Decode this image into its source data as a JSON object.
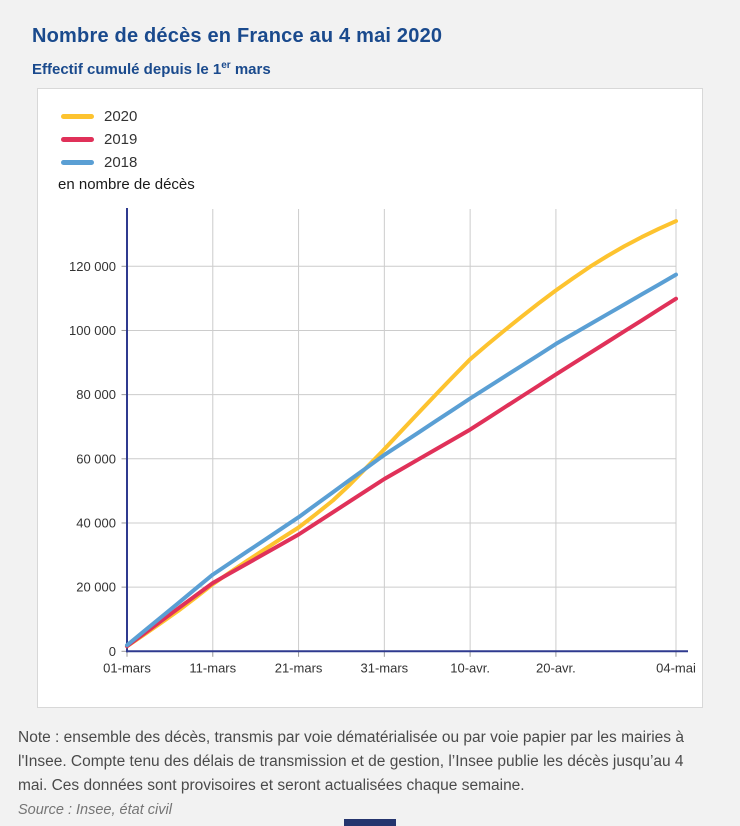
{
  "page": {
    "title": "Nombre de décès en France au 4 mai 2020",
    "subtitle_prefix": "Effectif cumulé depuis le 1",
    "subtitle_sup": "er",
    "subtitle_suffix": " mars",
    "note": "Note : ensemble des décès, transmis par voie dématérialisée ou par voie papier par les mairies à l'Insee. Compte tenu des délais de transmission et de gestion, l’Insee publie les décès jusqu’au 4 mai. Ces données sont provisoires et seront actualisées chaque semaine.",
    "source": "Source : Insee, état civil"
  },
  "legend": [
    {
      "label": "2020",
      "color": "#fdc32f"
    },
    {
      "label": "2019",
      "color": "#e03159"
    },
    {
      "label": "2018",
      "color": "#5a9fd4"
    }
  ],
  "unit_label": "en nombre de décès",
  "colors": {
    "title_blue": "#1a4a8d",
    "axis_navy": "#2f3a8f",
    "grid_gray": "#cccccc",
    "tick_gray": "#999999",
    "tick_label": "#333333",
    "card_background": "#ffffff",
    "page_background": "#f2f2f2"
  },
  "chart_data": {
    "type": "line",
    "title": "Nombre de décès en France au 4 mai 2020",
    "subtitle": "Effectif cumulé depuis le 1er mars",
    "ylabel": "en nombre de décès",
    "xlabel": "",
    "grid": true,
    "legend_position": "top-left",
    "x_range_days": [
      0,
      64
    ],
    "ylim": [
      0,
      138000
    ],
    "x_ticks": [
      {
        "day": 0,
        "label": "01-mars"
      },
      {
        "day": 10,
        "label": "11-mars"
      },
      {
        "day": 20,
        "label": "21-mars"
      },
      {
        "day": 30,
        "label": "31-mars"
      },
      {
        "day": 40,
        "label": "10-avr."
      },
      {
        "day": 50,
        "label": "20-avr."
      },
      {
        "day": 64,
        "label": "04-mai"
      }
    ],
    "y_ticks": [
      {
        "value": 0,
        "label": "0"
      },
      {
        "value": 20000,
        "label": "20 000"
      },
      {
        "value": 40000,
        "label": "40 000"
      },
      {
        "value": 60000,
        "label": "60 000"
      },
      {
        "value": 80000,
        "label": "80 000"
      },
      {
        "value": 100000,
        "label": "100 000"
      },
      {
        "value": 120000,
        "label": "120 000"
      }
    ],
    "days": [
      0,
      2,
      4,
      6,
      8,
      10,
      12,
      14,
      16,
      18,
      20,
      22,
      24,
      26,
      28,
      30,
      32,
      34,
      36,
      38,
      40,
      42,
      44,
      46,
      48,
      50,
      52,
      54,
      56,
      58,
      60,
      62,
      64
    ],
    "series": [
      {
        "name": "2020",
        "color": "#fdc32f",
        "values": [
          1600,
          5200,
          8900,
          12700,
          16700,
          20900,
          24600,
          28200,
          31700,
          35200,
          38600,
          42700,
          47000,
          52000,
          57500,
          63000,
          68700,
          74400,
          80000,
          85600,
          91000,
          95600,
          100000,
          104300,
          108500,
          112500,
          116300,
          119900,
          123200,
          126300,
          129100,
          131700,
          134100
        ]
      },
      {
        "name": "2019",
        "color": "#e03159",
        "values": [
          1600,
          5540,
          9480,
          13420,
          17360,
          21300,
          24320,
          27340,
          30360,
          33380,
          36400,
          39860,
          43320,
          46780,
          50240,
          53700,
          56780,
          59860,
          62940,
          66020,
          69100,
          72540,
          75980,
          79420,
          82860,
          86300,
          89670,
          93040,
          96410,
          99780,
          103150,
          106520,
          109900
        ]
      },
      {
        "name": "2018",
        "color": "#5a9fd4",
        "values": [
          1900,
          6300,
          10700,
          15100,
          19500,
          23900,
          27480,
          31060,
          34640,
          38220,
          41800,
          45680,
          49560,
          53440,
          57320,
          61200,
          64720,
          68240,
          71760,
          75280,
          78800,
          82200,
          85600,
          89000,
          92400,
          95800,
          98890,
          101970,
          105060,
          108140,
          111230,
          114310,
          117400
        ]
      }
    ]
  }
}
